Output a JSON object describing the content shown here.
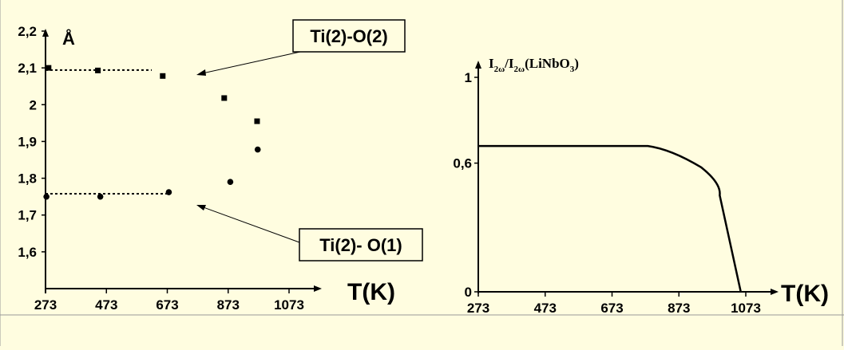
{
  "colors": {
    "background": "#fffde0",
    "ink": "#000000"
  },
  "chart_data": [
    {
      "type": "scatter",
      "ylabel": "Å",
      "xlabel": "T(K)",
      "x_ticks": [
        "273",
        "473",
        "673",
        "873",
        "1073"
      ],
      "y_ticks": [
        "1,6",
        "1,7",
        "1,8",
        "1,9",
        "2",
        "2,1",
        "2,2"
      ],
      "xlim": [
        273,
        1073
      ],
      "ylim": [
        1.5,
        2.2
      ],
      "series": [
        {
          "name": "Ti(2)-O(2)",
          "marker": "square",
          "points": [
            [
              283,
              2.1
            ],
            [
              445,
              2.093
            ],
            [
              658,
              2.078
            ],
            [
              860,
              2.018
            ],
            [
              968,
              1.955
            ]
          ],
          "dotted_level": {
            "y": 2.094,
            "x_range": [
              273,
              473
            ]
          }
        },
        {
          "name": "Ti(2)- O(1)",
          "marker": "circle",
          "points": [
            [
              276,
              1.75
            ],
            [
              453,
              1.75
            ],
            [
              678,
              1.762
            ],
            [
              880,
              1.79
            ],
            [
              970,
              1.878
            ]
          ],
          "dotted_level": {
            "y": 1.758,
            "x_range": [
              273,
              673
            ]
          }
        }
      ],
      "annotations": [
        {
          "text": "Ti(2)-O(2)",
          "points_to": [
            678,
            2.078
          ]
        },
        {
          "text": "Ti(2)- O(1)",
          "points_to": [
            678,
            1.758
          ]
        }
      ]
    },
    {
      "type": "line",
      "ylabel_parts": {
        "a": "I",
        "a_sub": "2ω",
        "slash": "/",
        "b": "I",
        "b_sub": "2ω",
        "tail": "(LiNbO",
        "tail_sub": "3",
        "close": ")"
      },
      "xlabel": "T(K)",
      "x_ticks": [
        "273",
        "473",
        "673",
        "873",
        "1073"
      ],
      "y_ticks": [
        "0",
        "0,6",
        "1"
      ],
      "xlim": [
        273,
        1073
      ],
      "ylim": [
        0,
        1
      ],
      "series": [
        {
          "points": [
            [
              273,
              0.68
            ],
            [
              780,
              0.68
            ],
            [
              850,
              0.665
            ],
            [
              940,
              0.58
            ],
            [
              995,
              0.45
            ],
            [
              1058,
              0
            ]
          ]
        }
      ]
    }
  ]
}
